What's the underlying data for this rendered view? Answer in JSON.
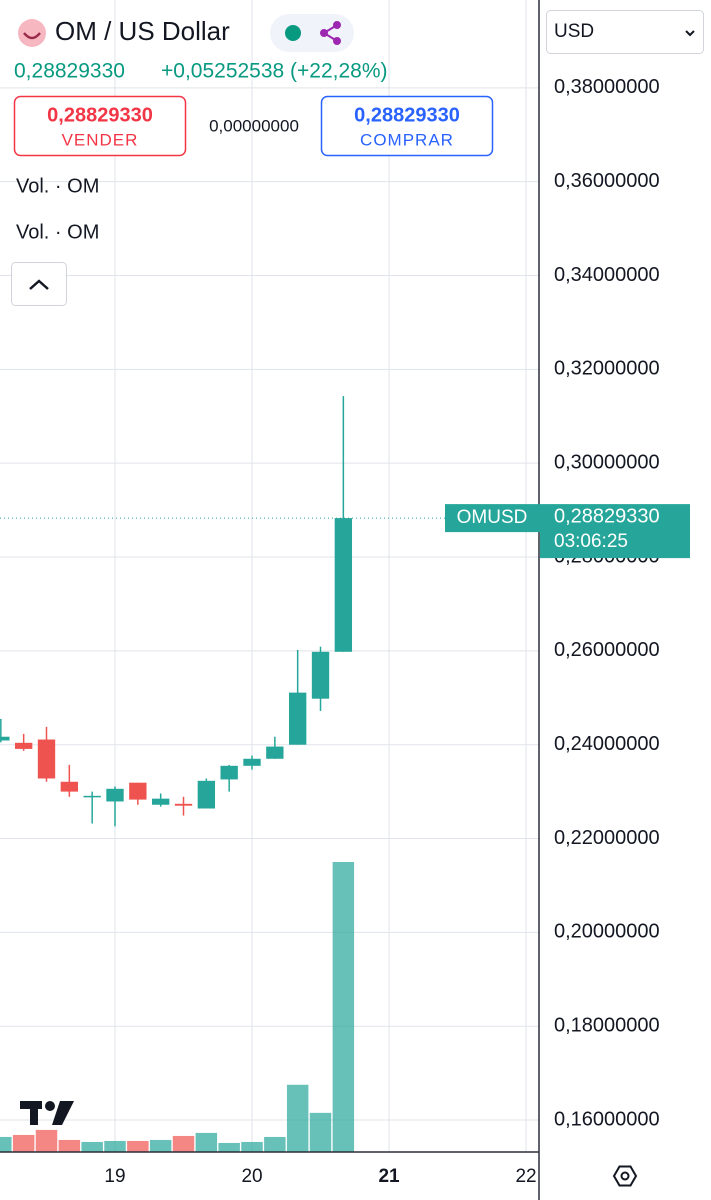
{
  "header": {
    "title": "OM / US Dollar",
    "price": "0,28829330",
    "change": "+0,05252538 (+22,28%)",
    "sell_price": "0,28829330",
    "sell_label": "VENDER",
    "spread": "0,00000000",
    "buy_price": "0,28829330",
    "buy_label": "COMPRAR",
    "indicators": [
      "Vol. · OM",
      "Vol. · OM"
    ],
    "currency": "USD"
  },
  "chart_data": {
    "type": "candlestick",
    "x": [
      18.1667,
      18.3333,
      18.5,
      18.6667,
      18.8333,
      19.0,
      19.1667,
      19.3333,
      19.5,
      19.6667,
      19.8333,
      20.0,
      20.1667,
      20.3333,
      20.5,
      20.6667
    ],
    "open": [
      0.2409,
      0.2404,
      0.2411,
      0.2321,
      0.2289,
      0.2279,
      0.2319,
      0.2272,
      0.2274,
      0.2264,
      0.2326,
      0.2355,
      0.237,
      0.24,
      0.2498,
      0.2598
    ],
    "high": [
      0.2455,
      0.2423,
      0.2438,
      0.2357,
      0.23,
      0.2311,
      0.2319,
      0.2296,
      0.2289,
      0.2328,
      0.2357,
      0.2377,
      0.2417,
      0.2602,
      0.2609,
      0.3143
    ],
    "low": [
      0.2405,
      0.2387,
      0.2321,
      0.2289,
      0.2232,
      0.2226,
      0.2272,
      0.2268,
      0.2249,
      0.2264,
      0.23,
      0.2347,
      0.237,
      0.24,
      0.2472,
      0.2598
    ],
    "close": [
      0.2417,
      0.2391,
      0.2328,
      0.23,
      0.2291,
      0.2306,
      0.2283,
      0.2285,
      0.227,
      0.2323,
      0.2355,
      0.237,
      0.2396,
      0.2511,
      0.2598,
      0.2882933
    ],
    "volume": [
      15,
      17,
      22,
      12,
      10,
      11,
      11,
      12,
      16,
      19,
      9,
      10,
      15,
      67,
      39,
      289
    ],
    "up_color": "#26a69a",
    "down_color": "#ef5350",
    "xlim": [
      18.1606,
      22.102
    ],
    "xticks": [
      19,
      20,
      21,
      22
    ],
    "ylim": [
      0.15319,
      0.39872
    ],
    "yticks": [
      {
        "value": 0.16,
        "label": "0,16000000"
      },
      {
        "value": 0.18,
        "label": "0,18000000"
      },
      {
        "value": 0.2,
        "label": "0,20000000"
      },
      {
        "value": 0.22,
        "label": "0,22000000"
      },
      {
        "value": 0.24,
        "label": "0,24000000"
      },
      {
        "value": 0.26,
        "label": "0,26000000"
      },
      {
        "value": 0.28,
        "label": "0,28000000"
      },
      {
        "value": 0.3,
        "label": "0,30000000"
      },
      {
        "value": 0.32,
        "label": "0,32000000"
      },
      {
        "value": 0.34,
        "label": "0,34000000"
      },
      {
        "value": 0.36,
        "label": "0,36000000"
      },
      {
        "value": 0.38,
        "label": "0,38000000"
      }
    ],
    "grid": true,
    "symbol": "OMUSD",
    "last_price": {
      "value": 0.2882933,
      "label": "0,28829330"
    },
    "countdown": "03:06:25"
  }
}
